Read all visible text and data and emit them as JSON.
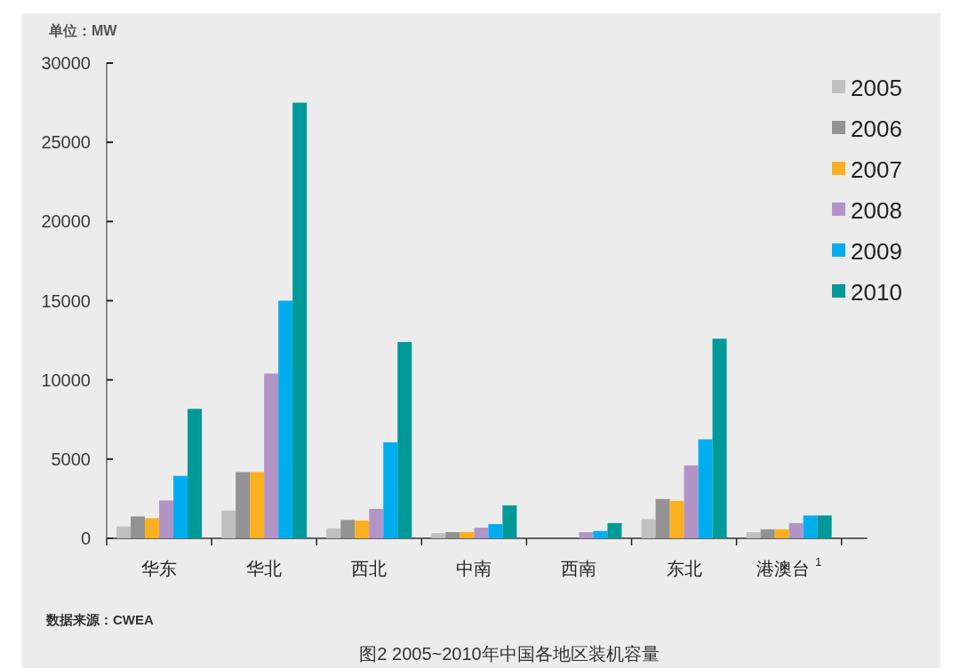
{
  "chart_data": {
    "type": "bar",
    "title": "图2 2005~2010年中国各地区装机容量",
    "ylabel": "单位：MW",
    "annotations": [
      "数据来源：CWEA"
    ],
    "categories": [
      "华东",
      "华北",
      "西北",
      "中南",
      "西南",
      "东北",
      "港澳台$^{1}$"
    ],
    "series": [
      {
        "name": "2005",
        "color": "#c0c0c0",
        "values": [
          750,
          1750,
          630,
          330,
          null,
          1210,
          390
        ]
      },
      {
        "name": "2006",
        "color": "#939393",
        "values": [
          1380,
          4180,
          1160,
          390,
          null,
          2480,
          570
        ]
      },
      {
        "name": "2007",
        "color": "#fbb01f",
        "values": [
          1270,
          4180,
          1120,
          400,
          null,
          2360,
          570
        ]
      },
      {
        "name": "2008",
        "color": "#b394c6",
        "values": [
          2390,
          10400,
          1860,
          670,
          390,
          4600,
          960
        ]
      },
      {
        "name": "2009",
        "color": "#00aeef",
        "values": [
          3940,
          15000,
          6060,
          900,
          460,
          6250,
          1440
        ]
      },
      {
        "name": "2010",
        "color": "#00999a",
        "values": [
          8170,
          27500,
          12390,
          2080,
          960,
          12600,
          1440
        ]
      }
    ],
    "ylim": [
      0,
      30000
    ],
    "yticks": [
      0,
      5000,
      10000,
      15000,
      20000,
      25000,
      30000
    ],
    "legend": "top right"
  }
}
